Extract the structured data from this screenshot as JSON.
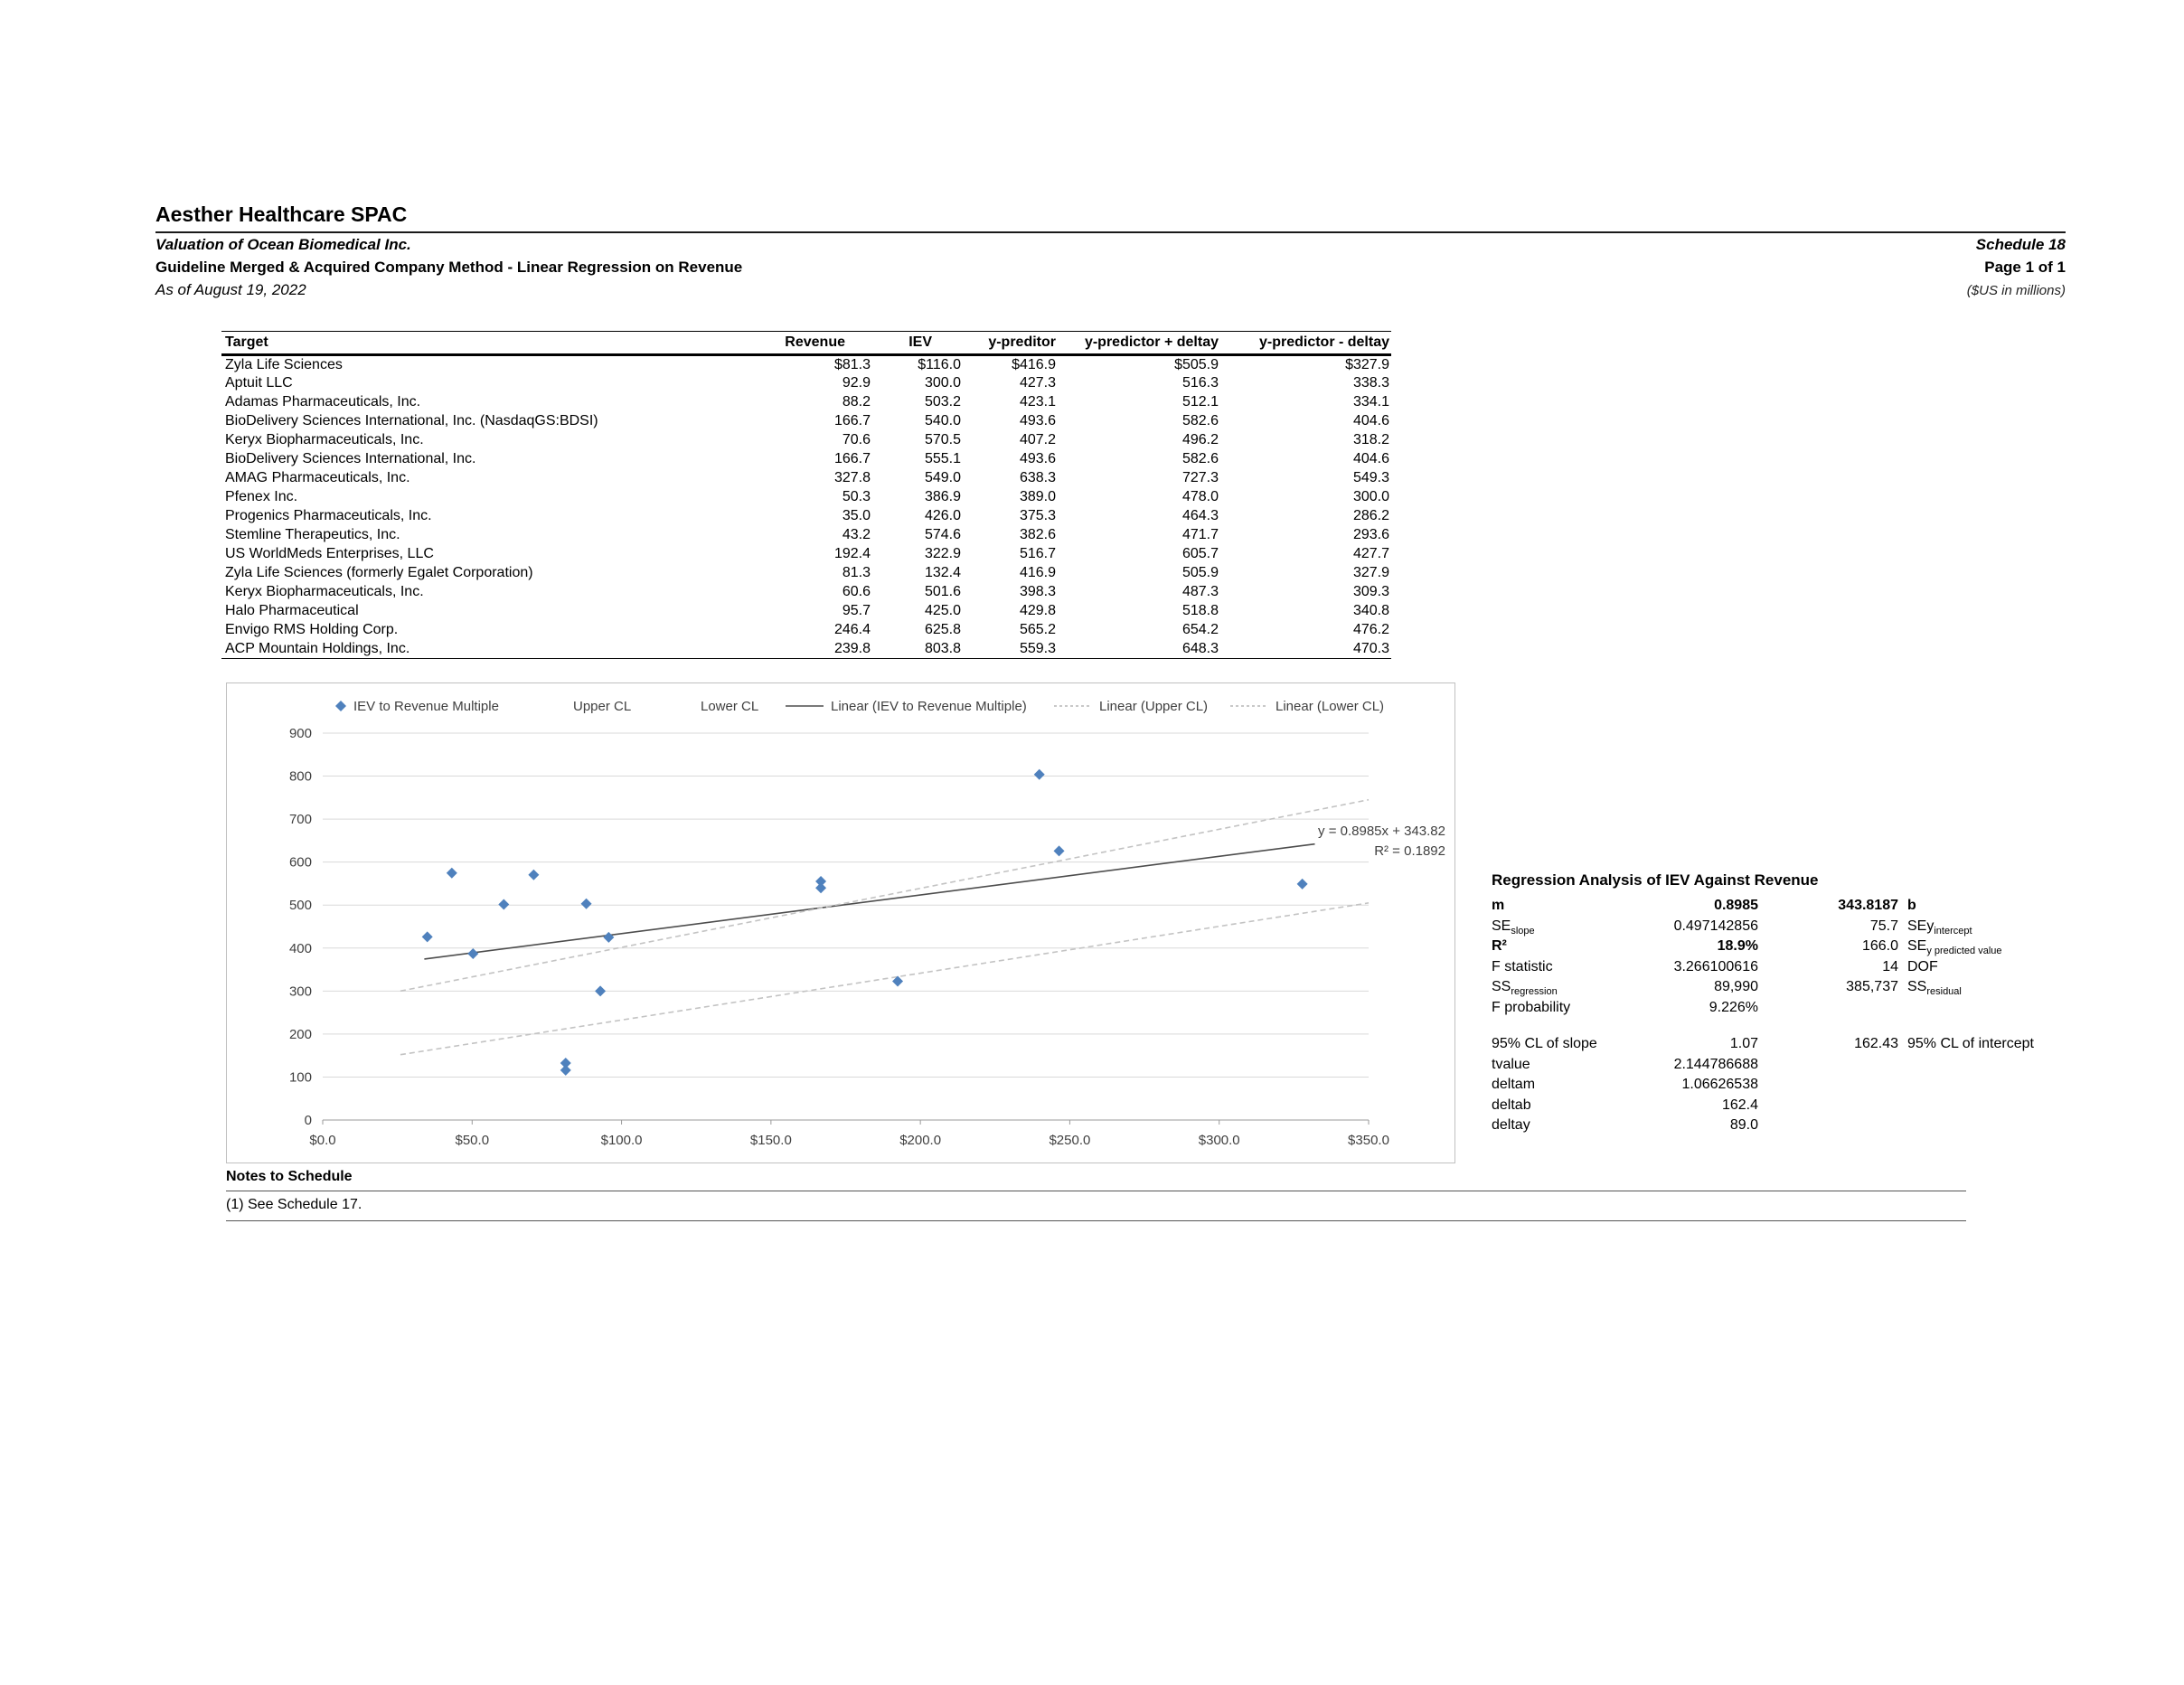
{
  "header": {
    "company": "Aesther Healthcare SPAC",
    "subtitle": "Valuation of Ocean Biomedical Inc.",
    "method": "Guideline Merged & Acquired Company Method - Linear Regression on Revenue",
    "as_of": "As of August 19, 2022",
    "schedule": "Schedule 18",
    "page": "Page 1 of 1",
    "units": "($US in millions)"
  },
  "table": {
    "columns": [
      "Target",
      "Revenue",
      "IEV",
      "y-preditor",
      "y-predictor + deltay",
      "y-predictor - deltay"
    ],
    "rows": [
      [
        "Zyla Life Sciences",
        "$81.3",
        "$116.0",
        "$416.9",
        "$505.9",
        "$327.9"
      ],
      [
        "Aptuit LLC",
        "92.9",
        "300.0",
        "427.3",
        "516.3",
        "338.3"
      ],
      [
        "Adamas Pharmaceuticals, Inc.",
        "88.2",
        "503.2",
        "423.1",
        "512.1",
        "334.1"
      ],
      [
        "BioDelivery Sciences International, Inc. (NasdaqGS:BDSI)",
        "166.7",
        "540.0",
        "493.6",
        "582.6",
        "404.6"
      ],
      [
        "Keryx Biopharmaceuticals, Inc.",
        "70.6",
        "570.5",
        "407.2",
        "496.2",
        "318.2"
      ],
      [
        "BioDelivery Sciences International, Inc.",
        "166.7",
        "555.1",
        "493.6",
        "582.6",
        "404.6"
      ],
      [
        "AMAG Pharmaceuticals, Inc.",
        "327.8",
        "549.0",
        "638.3",
        "727.3",
        "549.3"
      ],
      [
        "Pfenex Inc.",
        "50.3",
        "386.9",
        "389.0",
        "478.0",
        "300.0"
      ],
      [
        "Progenics Pharmaceuticals, Inc.",
        "35.0",
        "426.0",
        "375.3",
        "464.3",
        "286.2"
      ],
      [
        "Stemline Therapeutics, Inc.",
        "43.2",
        "574.6",
        "382.6",
        "471.7",
        "293.6"
      ],
      [
        "US WorldMeds Enterprises, LLC",
        "192.4",
        "322.9",
        "516.7",
        "605.7",
        "427.7"
      ],
      [
        "Zyla Life Sciences (formerly Egalet Corporation)",
        "81.3",
        "132.4",
        "416.9",
        "505.9",
        "327.9"
      ],
      [
        "Keryx Biopharmaceuticals, Inc.",
        "60.6",
        "501.6",
        "398.3",
        "487.3",
        "309.3"
      ],
      [
        "Halo Pharmaceutical",
        "95.7",
        "425.0",
        "429.8",
        "518.8",
        "340.8"
      ],
      [
        "Envigo RMS Holding Corp.",
        "246.4",
        "625.8",
        "565.2",
        "654.2",
        "476.2"
      ],
      [
        "ACP Mountain Holdings, Inc.",
        "239.8",
        "803.8",
        "559.3",
        "648.3",
        "470.3"
      ]
    ]
  },
  "chart_data": {
    "type": "scatter",
    "title": "",
    "xlabel": "",
    "ylabel": "",
    "xlim": [
      0,
      350
    ],
    "ylim": [
      0,
      900
    ],
    "grid": true,
    "legend_position": "top",
    "marker_color": "#4f81bd",
    "xticks": [
      0,
      50,
      100,
      150,
      200,
      250,
      300,
      350
    ],
    "xtick_labels": [
      "$0.0",
      "$50.0",
      "$100.0",
      "$150.0",
      "$200.0",
      "$250.0",
      "$300.0",
      "$350.0"
    ],
    "yticks": [
      0,
      100,
      200,
      300,
      400,
      500,
      600,
      700,
      800,
      900
    ],
    "series": [
      {
        "name": "IEV to Revenue Multiple",
        "x": [
          81.3,
          92.9,
          88.2,
          166.7,
          70.6,
          166.7,
          327.8,
          50.3,
          35.0,
          43.2,
          192.4,
          81.3,
          60.6,
          95.7,
          246.4,
          239.8
        ],
        "y": [
          116.0,
          300.0,
          503.2,
          540.0,
          570.5,
          555.1,
          549.0,
          386.9,
          426.0,
          574.6,
          322.9,
          132.4,
          501.6,
          425.0,
          625.8,
          803.8
        ]
      }
    ],
    "trendlines": [
      {
        "name": "Linear (IEV to Revenue Multiple)",
        "equation": "y = 0.8985x + 343.82",
        "x": [
          34,
          332
        ],
        "y": [
          374.4,
          642.1
        ],
        "style": "solid",
        "color": "#4d4d4d"
      },
      {
        "name": "Linear (Upper CL)",
        "x": [
          26,
          350
        ],
        "y": [
          300,
          745
        ],
        "style": "dashed",
        "color": "#c3c3c3"
      },
      {
        "name": "Linear (Lower CL)",
        "x": [
          26,
          350
        ],
        "y": [
          152,
          505
        ],
        "style": "dashed",
        "color": "#c3c3c3"
      }
    ],
    "legend": [
      {
        "label": "IEV to Revenue Multiple",
        "marker": "diamond"
      },
      {
        "label": "Upper CL",
        "marker": "none"
      },
      {
        "label": "Lower CL",
        "marker": "none"
      },
      {
        "label": "Linear (IEV to Revenue Multiple)",
        "marker": "solid-line"
      },
      {
        "label": "Linear (Upper CL)",
        "marker": "dashed-line"
      },
      {
        "label": "Linear (Lower CL)",
        "marker": "dashed-line"
      }
    ],
    "annotation": {
      "line1": "y = 0.8985x + 343.82",
      "line2": "R² = 0.1892"
    }
  },
  "regression": {
    "title": "Regression Analysis of IEV Against Revenue",
    "rows": [
      {
        "l1": "m",
        "v1": "0.8985",
        "v2": "343.8187",
        "l2": "b",
        "b1": true,
        "bv1": true,
        "bv2": true,
        "bl2": true
      },
      {
        "l1": "SE",
        "l1sub": "slope",
        "v1": "0.497142856",
        "v2": "75.7",
        "l2": "SEy",
        "l2sub": "intercept"
      },
      {
        "l1": "R²",
        "v1": "18.9%",
        "v2": "166.0",
        "l2": "SE",
        "l2sub": "y predicted value",
        "b1": true,
        "bv1": true
      },
      {
        "l1": "F statistic",
        "v1": "3.266100616",
        "v2": "14",
        "l2": "DOF"
      },
      {
        "l1": "SS",
        "l1sub": "regression",
        "v1": "89,990",
        "v2": "385,737",
        "l2": "SS",
        "l2sub": "residual"
      },
      {
        "l1": "F probability",
        "v1": "9.226%",
        "v2": "",
        "l2": ""
      },
      {
        "spacer": true
      },
      {
        "l1": "95% CL of slope",
        "v1": "1.07",
        "v2": "162.43",
        "l2": "95% CL of intercept"
      },
      {
        "l1": "tvalue",
        "v1": "2.144786688",
        "v2": "",
        "l2": ""
      },
      {
        "l1": "deltam",
        "v1": "1.06626538",
        "v2": "",
        "l2": ""
      },
      {
        "l1": "deltab",
        "v1": "162.4",
        "v2": "",
        "l2": ""
      },
      {
        "l1": "deltay",
        "v1": "89.0",
        "v2": "",
        "l2": ""
      }
    ]
  },
  "notes": {
    "title": "Notes to Schedule",
    "items": [
      "(1)  See Schedule 17."
    ]
  }
}
